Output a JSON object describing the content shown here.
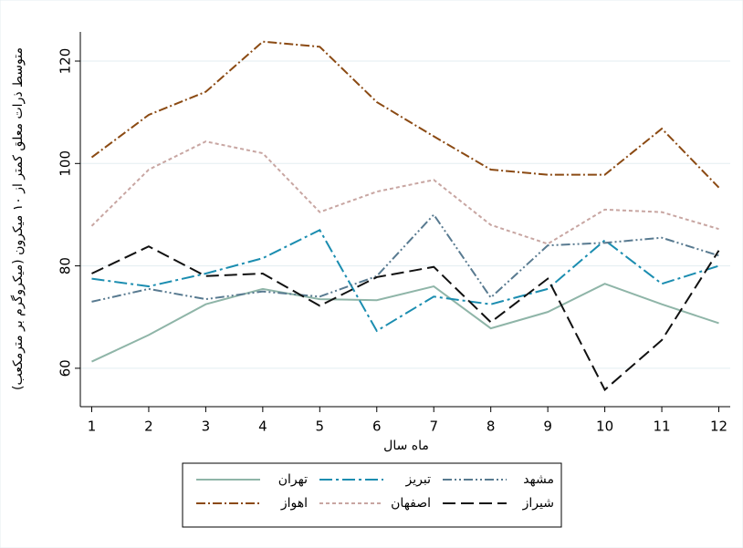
{
  "chart_data": {
    "type": "line",
    "y_label": "متوسط ذرات معلق کمتر از ۱۰ میکرون (میکروگرم بر مترمکعب)",
    "x_label": "ماه سال",
    "x": [
      1,
      2,
      3,
      4,
      5,
      6,
      7,
      8,
      9,
      10,
      11,
      12
    ],
    "xlim": [
      0.8,
      12.2
    ],
    "xticks": [
      1,
      2,
      3,
      4,
      5,
      6,
      7,
      8,
      9,
      10,
      11,
      12
    ],
    "ylim": [
      52.5,
      125.7
    ],
    "yticks": [
      60,
      80,
      100,
      120
    ],
    "grid": true,
    "series": [
      {
        "name": "تهران",
        "color": "#8fb5a8",
        "dash": "none",
        "values": [
          61.3,
          66.5,
          72.5,
          75.5,
          73.5,
          73.3,
          76,
          67.8,
          71,
          76.5,
          72.5,
          68.8
        ]
      },
      {
        "name": "تبریز",
        "color": "#1b8db0",
        "dash": "14 4 3 4",
        "values": [
          77.5,
          76,
          78.5,
          81.5,
          87,
          67.3,
          74,
          72.5,
          75.5,
          85,
          76.5,
          80
        ]
      },
      {
        "name": "مشهد",
        "color": "#587a90",
        "dash": "10 3 2 3 2 3",
        "values": [
          73,
          75.5,
          73.5,
          75,
          74,
          78,
          90,
          73.8,
          84,
          84.5,
          85.5,
          82
        ]
      },
      {
        "name": "اهواز",
        "color": "#8b4a13",
        "dash": "10 3 2 3",
        "values": [
          101.2,
          109.5,
          114,
          123.8,
          122.8,
          112,
          105.3,
          98.8,
          97.8,
          97.8,
          106.8,
          95.3
        ]
      },
      {
        "name": "اصفهان",
        "color": "#c8a6a2",
        "dash": "4 3",
        "values": [
          87.8,
          98.8,
          104.3,
          102,
          90.5,
          94.5,
          96.8,
          88,
          84.3,
          91,
          90.5,
          87.2
        ]
      },
      {
        "name": "شیراز",
        "color": "#111111",
        "dash": "14 6",
        "values": [
          78.5,
          83.8,
          78,
          78.5,
          72.2,
          77.8,
          79.8,
          69,
          77.5,
          55.8,
          65.5,
          83
        ]
      }
    ]
  }
}
